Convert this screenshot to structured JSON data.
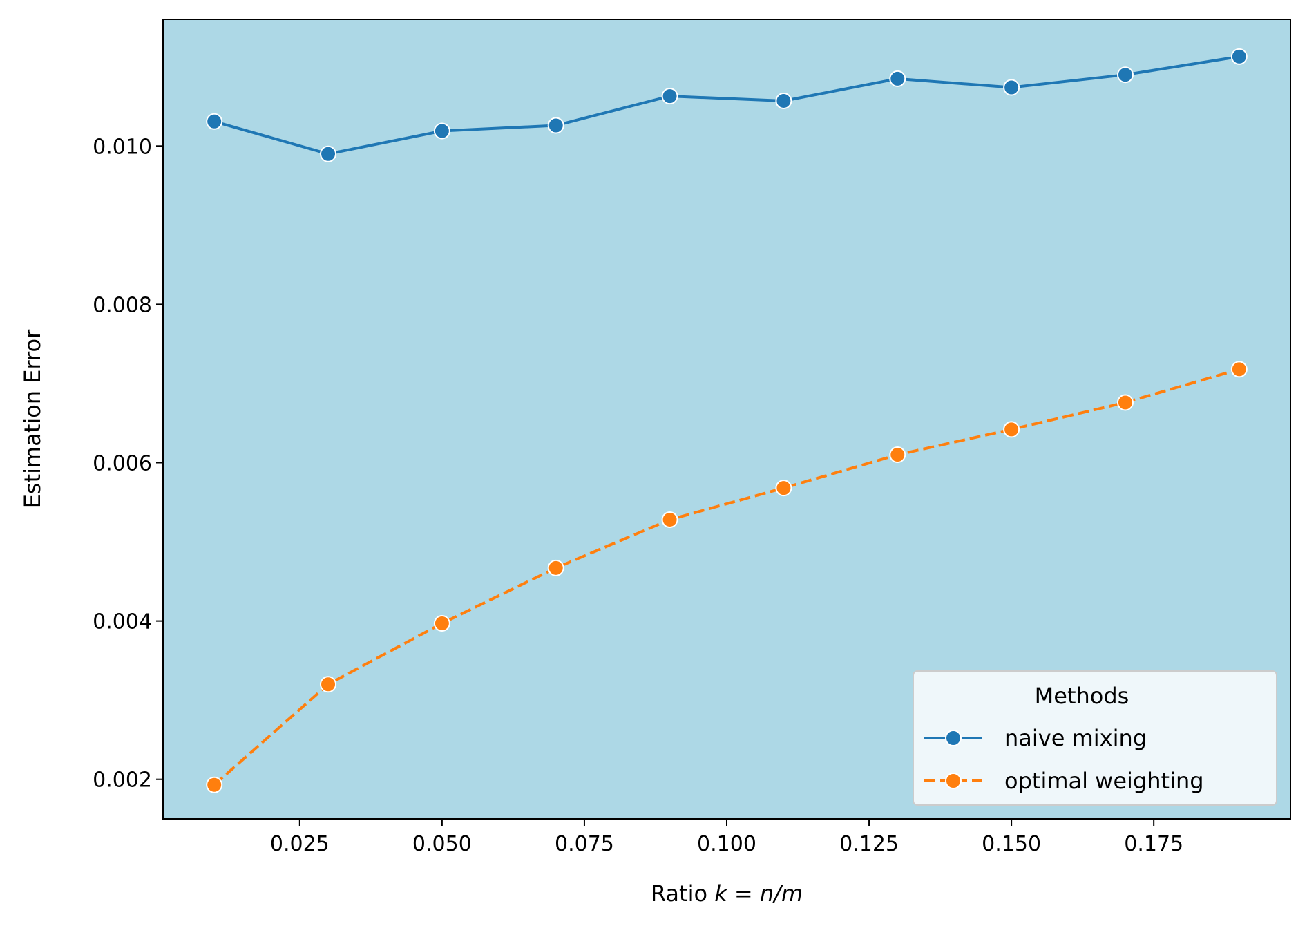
{
  "chart_data": {
    "type": "line",
    "title": "",
    "xlabel_prefix": "Ratio ",
    "xlabel_math": "k = n/m",
    "ylabel": "Estimation Error",
    "xlim": [
      0.001,
      0.199
    ],
    "ylim": [
      0.0015,
      0.0116
    ],
    "x_ticks": [
      0.025,
      0.05,
      0.075,
      0.1,
      0.125,
      0.15,
      0.175
    ],
    "x_tick_labels": [
      "0.025",
      "0.050",
      "0.075",
      "0.100",
      "0.125",
      "0.150",
      "0.175"
    ],
    "y_ticks": [
      0.002,
      0.004,
      0.006,
      0.008,
      0.01
    ],
    "y_tick_labels": [
      "0.002",
      "0.004",
      "0.006",
      "0.008",
      "0.010"
    ],
    "grid": false,
    "background": "#add8e6",
    "x": [
      0.01,
      0.03,
      0.05,
      0.07,
      0.09,
      0.11,
      0.13,
      0.15,
      0.17,
      0.19
    ],
    "series": [
      {
        "name": "naive mixing",
        "color": "#1f77b4",
        "linestyle": "solid",
        "values": [
          0.01031,
          0.0099,
          0.01019,
          0.01026,
          0.01063,
          0.01057,
          0.01085,
          0.01074,
          0.0109,
          0.01113
        ]
      },
      {
        "name": "optimal weighting",
        "color": "#ff7f0e",
        "linestyle": "dashed",
        "values": [
          0.00193,
          0.0032,
          0.00397,
          0.00467,
          0.00528,
          0.00568,
          0.0061,
          0.00642,
          0.00676,
          0.00718
        ]
      }
    ],
    "legend": {
      "title": "Methods",
      "placement": "lower-right"
    }
  }
}
